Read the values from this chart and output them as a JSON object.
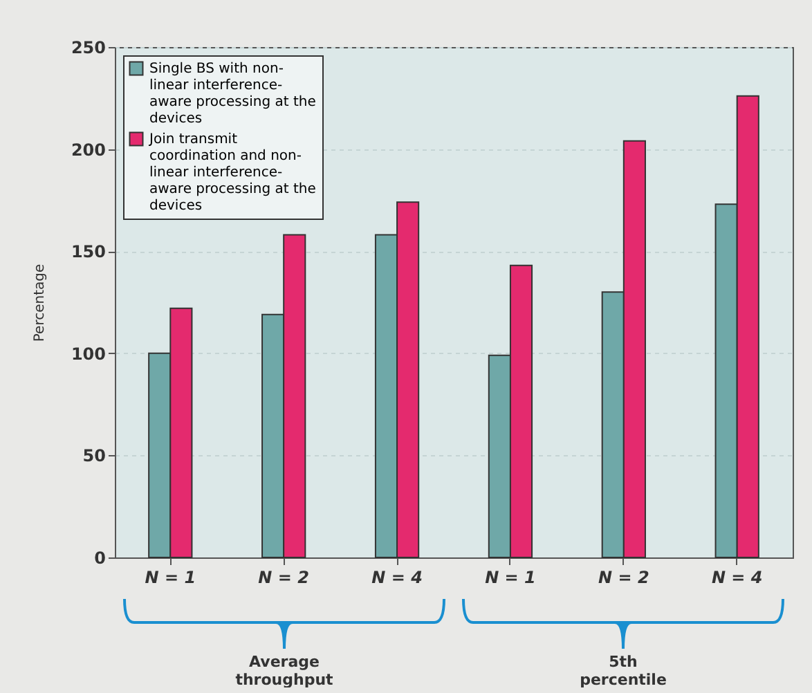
{
  "chart_data": {
    "type": "bar",
    "ylabel": "Percentage",
    "categories": [
      "N = 1",
      "N = 2",
      "N = 4",
      "N = 1",
      "N = 2",
      "N = 4"
    ],
    "series": [
      {
        "name": "Single BS with non-linear interference-aware processing at the devices",
        "color": "#6fa8a8",
        "values": [
          100,
          119,
          158,
          99,
          130,
          173
        ]
      },
      {
        "name": "Join transmit coordination and non-linear interference-aware processing at the devices",
        "color": "#e42a6e",
        "values": [
          122,
          158,
          174,
          143,
          204,
          226
        ]
      }
    ],
    "ylim": [
      0,
      250
    ],
    "yticks": [
      0,
      50,
      100,
      150,
      200,
      250
    ],
    "grid": "y",
    "legend": "top left",
    "annotations": [
      "Average throughput",
      "5th percentile"
    ]
  }
}
